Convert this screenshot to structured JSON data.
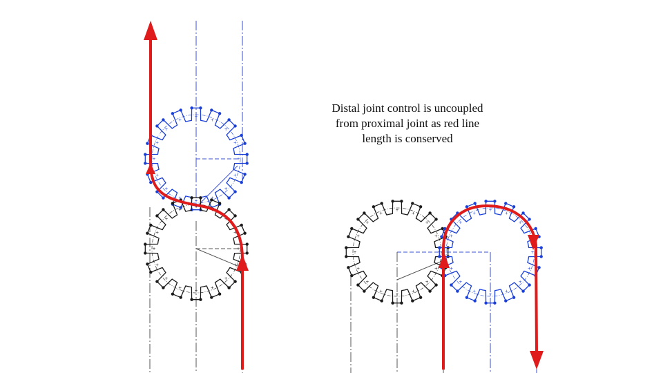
{
  "caption": {
    "lines": [
      "Distal joint control is uncoupled",
      "from proximal joint as red line",
      "length is conserved"
    ]
  },
  "colors": {
    "proximal_gear": "#1a1a1a",
    "distal_gear": "#1a3fd6",
    "cable": "#e01b1b",
    "centerline_dark": "#555555",
    "centerline_blue": "#3a4fd6"
  },
  "figure": {
    "left": {
      "configuration": "straight",
      "teeth": 16
    },
    "right": {
      "configuration": "bent",
      "teeth": 16
    }
  }
}
